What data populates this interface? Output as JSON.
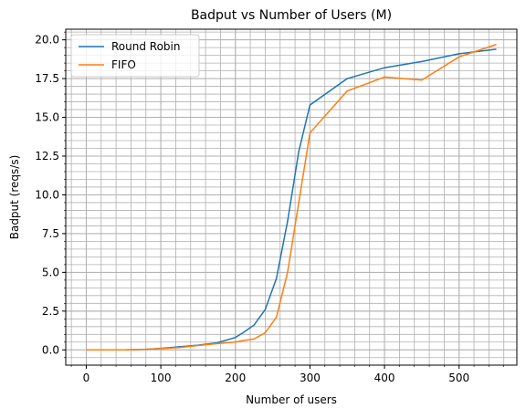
{
  "chart_data": {
    "type": "line",
    "title": "Badput vs Number of Users (M)",
    "x_label": "Number of users",
    "y_label": "Badput (reqs/s)",
    "x": [
      0,
      25,
      50,
      75,
      100,
      125,
      150,
      175,
      200,
      210,
      225,
      240,
      255,
      270,
      285,
      300,
      350,
      400,
      450,
      500,
      550
    ],
    "series": [
      {
        "name": "Round Robin",
        "color": "#1f77b4",
        "values": [
          0,
          0,
          0,
          0.02,
          0.1,
          0.2,
          0.3,
          0.45,
          0.8,
          1.1,
          1.6,
          2.6,
          4.6,
          8.3,
          12.8,
          15.8,
          17.5,
          18.2,
          18.6,
          19.1,
          19.4
        ]
      },
      {
        "name": "FIFO",
        "color": "#ff7f0e",
        "values": [
          0,
          0,
          0,
          0.02,
          0.08,
          0.15,
          0.28,
          0.4,
          0.5,
          0.6,
          0.7,
          1.1,
          2.1,
          5.0,
          9.5,
          14.0,
          16.7,
          17.6,
          17.4,
          18.9,
          19.7
        ]
      }
    ],
    "xlim": [
      -27.5,
      577.5
    ],
    "ylim": [
      -0.985,
      20.685
    ],
    "xticks": [
      0,
      100,
      200,
      300,
      400,
      500
    ],
    "yticks": [
      {
        "value": 0,
        "label": "0.0"
      },
      2.5,
      {
        "value": 5,
        "label": "5.0"
      },
      7.5,
      {
        "value": 10,
        "label": "10.0"
      },
      12.5,
      {
        "value": 15,
        "label": "15.0"
      },
      17.5,
      {
        "value": 20,
        "label": "20.0"
      }
    ],
    "grid": true,
    "minor_grid": true,
    "legend": "upper left"
  }
}
